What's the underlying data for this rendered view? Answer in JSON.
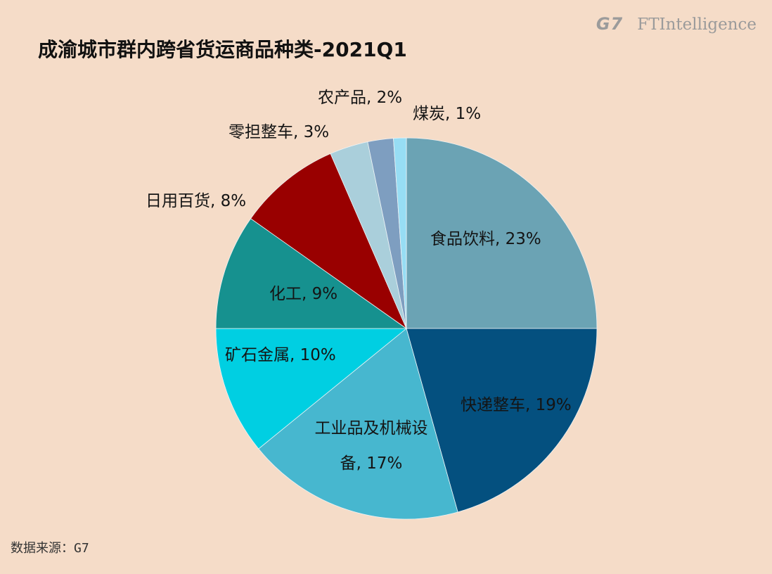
{
  "logo": {
    "mark": "G7",
    "name": "FTIntelligence"
  },
  "source": "数据来源：G7",
  "chart_data": {
    "type": "pie",
    "title": "成渝城市群内跨省货运商品种类-2021Q1",
    "categories": [
      "食品饮料",
      "快递整车",
      "工业品及机械设备",
      "矿石金属",
      "化工",
      "日用百货",
      "零担整车",
      "农产品",
      "煤炭"
    ],
    "values": [
      23,
      19,
      17,
      10,
      9,
      8,
      3,
      2,
      1
    ],
    "value_suffix": "%",
    "colors": [
      "#6ba3b4",
      "#04507f",
      "#47b7cf",
      "#00cfe2",
      "#16918f",
      "#990000",
      "#aacfdb",
      "#7e9ec0",
      "#97ddf4"
    ]
  }
}
